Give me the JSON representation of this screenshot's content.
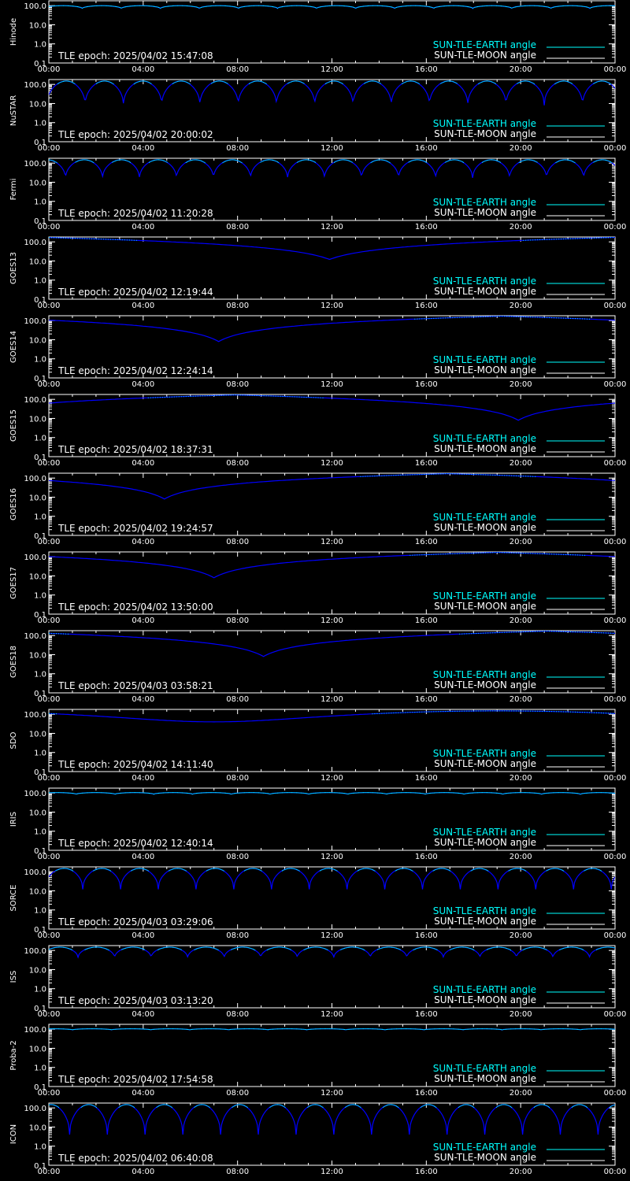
{
  "colors": {
    "background": "#000000",
    "axes": "#ffffff",
    "earth_curve": "#0000ff",
    "earth_legend": "#00ffff",
    "moon": "#ffffff"
  },
  "legend": {
    "earth_label": "SUN-TLE-EARTH angle",
    "moon_label": "SUN-TLE-MOON angle"
  },
  "chart_data": [
    {
      "type": "line",
      "ylabel": "Hinode",
      "epoch_text": "TLE epoch: 2025/04/02 15:47:08",
      "pattern": "oscillating",
      "max": 100,
      "min": 70,
      "cycles": 14.5,
      "phase": 0.15
    },
    {
      "type": "line",
      "ylabel": "NuSTAR",
      "epoch_text": "TLE epoch: 2025/04/02 20:00:02",
      "pattern": "oscillating",
      "max": 150,
      "min": 8,
      "cycles": 14.8,
      "phase": 0.05
    },
    {
      "type": "line",
      "ylabel": "Fermi",
      "epoch_text": "TLE epoch: 2025/04/02 11:20:28",
      "pattern": "oscillating",
      "max": 150,
      "min": 15,
      "cycles": 15.3,
      "phase": 0.55
    },
    {
      "type": "line",
      "ylabel": "GOES13",
      "epoch_text": "TLE epoch: 2025/04/02 12:19:44",
      "pattern": "daily",
      "max": 170,
      "min": 12,
      "min_hour": 11.9
    },
    {
      "type": "line",
      "ylabel": "GOES14",
      "epoch_text": "TLE epoch: 2025/04/02 12:24:14",
      "pattern": "daily",
      "max": 170,
      "min": 8,
      "min_hour": 7.2
    },
    {
      "type": "line",
      "ylabel": "GOES15",
      "epoch_text": "TLE epoch: 2025/04/02 18:37:31",
      "pattern": "daily",
      "max": 170,
      "min": 8,
      "min_hour": 19.9
    },
    {
      "type": "line",
      "ylabel": "GOES16",
      "epoch_text": "TLE epoch: 2025/04/02 19:24:57",
      "pattern": "daily",
      "max": 170,
      "min": 8,
      "min_hour": 4.9
    },
    {
      "type": "line",
      "ylabel": "GOES17",
      "epoch_text": "TLE epoch: 2025/04/02 13:50:00",
      "pattern": "daily",
      "max": 170,
      "min": 8,
      "min_hour": 7.0
    },
    {
      "type": "line",
      "ylabel": "GOES18",
      "epoch_text": "TLE epoch: 2025/04/03 03:58:21",
      "pattern": "daily",
      "max": 170,
      "min": 8,
      "min_hour": 9.1
    },
    {
      "type": "line",
      "ylabel": "SDO",
      "epoch_text": "TLE epoch: 2025/04/02 14:11:40",
      "pattern": "smooth",
      "max": 150,
      "min": 40,
      "min_hour": 7.0
    },
    {
      "type": "line",
      "ylabel": "IRIS",
      "epoch_text": "TLE epoch: 2025/04/02 12:40:14",
      "pattern": "oscillating",
      "max": 105,
      "min": 85,
      "cycles": 14.6,
      "phase": 0.3
    },
    {
      "type": "line",
      "ylabel": "SORCE",
      "epoch_text": "TLE epoch: 2025/04/03 03:29:06",
      "pattern": "oscillating",
      "max": 150,
      "min": 12,
      "cycles": 15.0,
      "phase": 0.1
    },
    {
      "type": "line",
      "ylabel": "ISS",
      "epoch_text": "TLE epoch: 2025/04/03 03:13:20",
      "pattern": "oscillating",
      "max": 150,
      "min": 40,
      "cycles": 15.5,
      "phase": 0.2
    },
    {
      "type": "line",
      "ylabel": "Proba-2",
      "epoch_text": "TLE epoch: 2025/04/02 17:54:58",
      "pattern": "oscillating",
      "max": 105,
      "min": 92,
      "cycles": 14.5,
      "phase": 0.4
    },
    {
      "type": "line",
      "ylabel": "ICON",
      "epoch_text": "TLE epoch: 2025/04/02 06:40:08",
      "pattern": "oscillating",
      "max": 150,
      "min": 4,
      "cycles": 15.0,
      "phase": 0.45
    }
  ],
  "axes": {
    "x_ticks": [
      "00:00",
      "04:00",
      "08:00",
      "12:00",
      "16:00",
      "20:00",
      "00:00"
    ],
    "y_ticks": [
      "100.0",
      "10.0",
      "1.0",
      "0.1"
    ],
    "y_scale": "log",
    "ylim": [
      0.1,
      180
    ],
    "x_range_hours": [
      0,
      24
    ]
  }
}
